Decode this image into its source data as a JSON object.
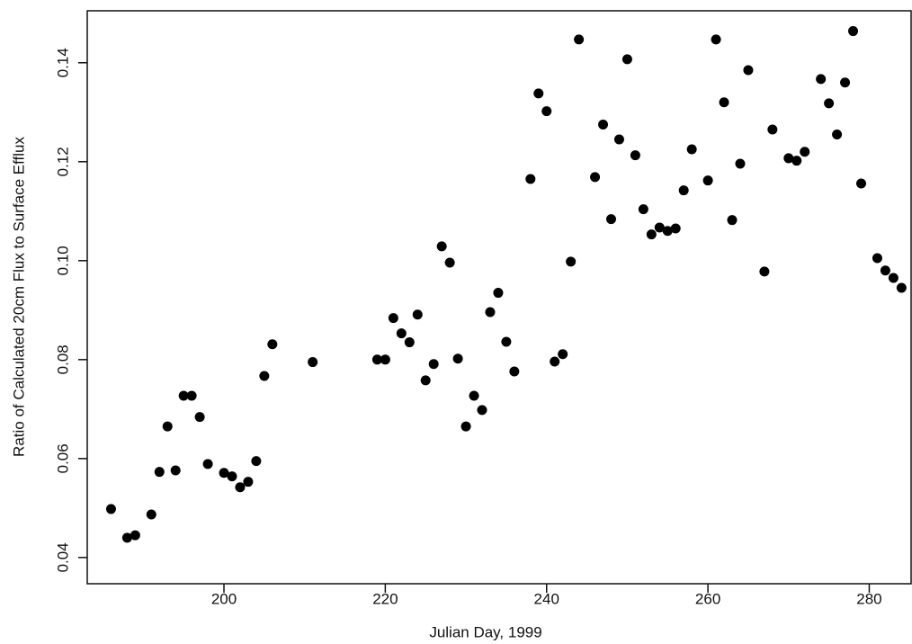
{
  "chart_data": {
    "type": "scatter",
    "x_label": "Julian Day, 1999",
    "y_label": "Ratio of Calculated 20cm Flux to Surface Efflux",
    "x": [
      186,
      188,
      189,
      191,
      192,
      193,
      194,
      195,
      196,
      197,
      198,
      200,
      201,
      202,
      203,
      204,
      205,
      206,
      211,
      219,
      220,
      221,
      222,
      223,
      224,
      225,
      226,
      227,
      228,
      229,
      230,
      231,
      232,
      233,
      234,
      235,
      236,
      238,
      239,
      240,
      241,
      242,
      243,
      244,
      246,
      247,
      248,
      249,
      250,
      251,
      252,
      253,
      254,
      255,
      256,
      257,
      258,
      260,
      261,
      262,
      263,
      264,
      265,
      267,
      268,
      270,
      271,
      272,
      274,
      275,
      276,
      277,
      278,
      279,
      281,
      282,
      283,
      284
    ],
    "values": [
      0.0498,
      0.044,
      0.0445,
      0.0487,
      0.0573,
      0.0665,
      0.0576,
      0.0727,
      0.0727,
      0.0684,
      0.0589,
      0.0571,
      0.0564,
      0.0542,
      0.0553,
      0.0595,
      0.0767,
      0.0831,
      0.0795,
      0.08,
      0.08,
      0.0884,
      0.0853,
      0.0835,
      0.0891,
      0.0758,
      0.0791,
      0.1029,
      0.0996,
      0.0802,
      0.0665,
      0.0727,
      0.0698,
      0.0896,
      0.0935,
      0.0836,
      0.0776,
      0.1165,
      0.1338,
      0.1302,
      0.0796,
      0.0811,
      0.0998,
      0.1447,
      0.1169,
      0.1275,
      0.1084,
      0.1245,
      0.1407,
      0.1213,
      0.1104,
      0.1053,
      0.1067,
      0.106,
      0.1065,
      0.1142,
      0.1225,
      0.1162,
      0.1447,
      0.132,
      0.1082,
      0.1196,
      0.1385,
      0.0978,
      0.1265,
      0.1207,
      0.1202,
      0.122,
      0.1367,
      0.1318,
      0.1255,
      0.136,
      0.1464,
      0.1156,
      0.1005,
      0.098,
      0.0965,
      0.0945
    ],
    "color": "#000000",
    "xlim": [
      183.05,
      285.3
    ],
    "ylim": [
      0.0347,
      0.1505
    ],
    "xticks": [
      200,
      220,
      240,
      260,
      280
    ],
    "yticks": [
      0.04,
      0.06,
      0.08,
      {
        "value": 0.1,
        "label": "0.10"
      },
      0.12,
      0.14
    ]
  }
}
